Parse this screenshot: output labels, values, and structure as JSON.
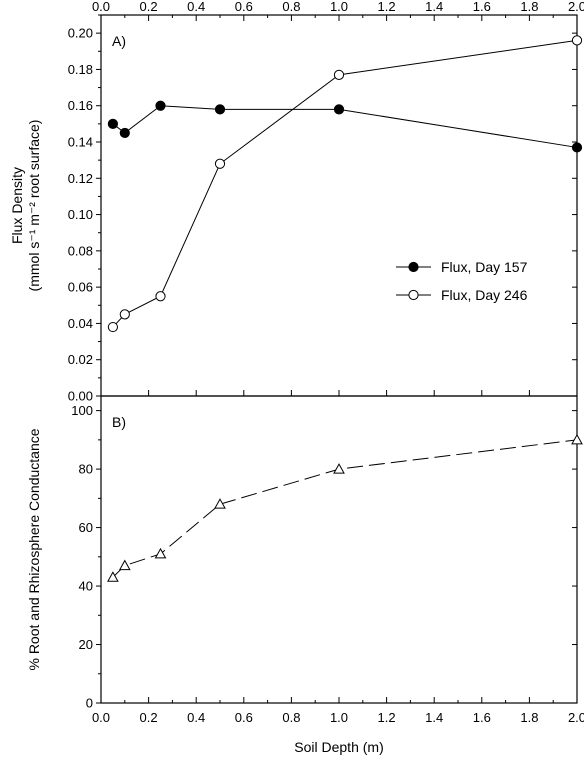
{
  "chart_data": [
    {
      "panel": "A)",
      "type": "line",
      "ylabel_line1": "Flux Density",
      "ylabel_line2": "(mmol s⁻¹ m⁻² root surface)",
      "xlim": [
        0,
        2.0
      ],
      "ylim": [
        0,
        0.21
      ],
      "xticks": [
        "0.0",
        "0.2",
        "0.4",
        "0.6",
        "0.8",
        "1.0",
        "1.2",
        "1.4",
        "1.6",
        "1.8",
        "2.0"
      ],
      "yticks": [
        "0.00",
        "0.02",
        "0.04",
        "0.06",
        "0.08",
        "0.10",
        "0.12",
        "0.14",
        "0.16",
        "0.18",
        "0.20"
      ],
      "legend_position": "right",
      "series": [
        {
          "name": "Flux, Day 157",
          "marker": "filled-circle",
          "line": "solid",
          "x": [
            0.05,
            0.1,
            0.25,
            0.5,
            1.0,
            2.0
          ],
          "y": [
            0.15,
            0.145,
            0.16,
            0.158,
            0.158,
            0.137
          ]
        },
        {
          "name": "Flux, Day 246",
          "marker": "open-circle",
          "line": "solid",
          "x": [
            0.05,
            0.1,
            0.25,
            0.5,
            1.0,
            2.0
          ],
          "y": [
            0.038,
            0.045,
            0.055,
            0.128,
            0.177,
            0.196
          ]
        }
      ]
    },
    {
      "panel": "B)",
      "type": "line",
      "xlabel": "Soil Depth (m)",
      "ylabel": "% Root and Rhizosphere Conductance",
      "xlim": [
        0,
        2.0
      ],
      "ylim": [
        0,
        105
      ],
      "xticks": [
        "0.0",
        "0.2",
        "0.4",
        "0.6",
        "0.8",
        "1.0",
        "1.2",
        "1.4",
        "1.6",
        "1.8",
        "2.0"
      ],
      "yticks": [
        "0",
        "20",
        "40",
        "60",
        "80",
        "100"
      ],
      "series": [
        {
          "marker": "open-triangle",
          "line": "dashed",
          "x": [
            0.05,
            0.1,
            0.25,
            0.5,
            1.0,
            2.0
          ],
          "y": [
            43,
            47,
            51,
            68,
            80,
            90
          ]
        }
      ]
    }
  ]
}
